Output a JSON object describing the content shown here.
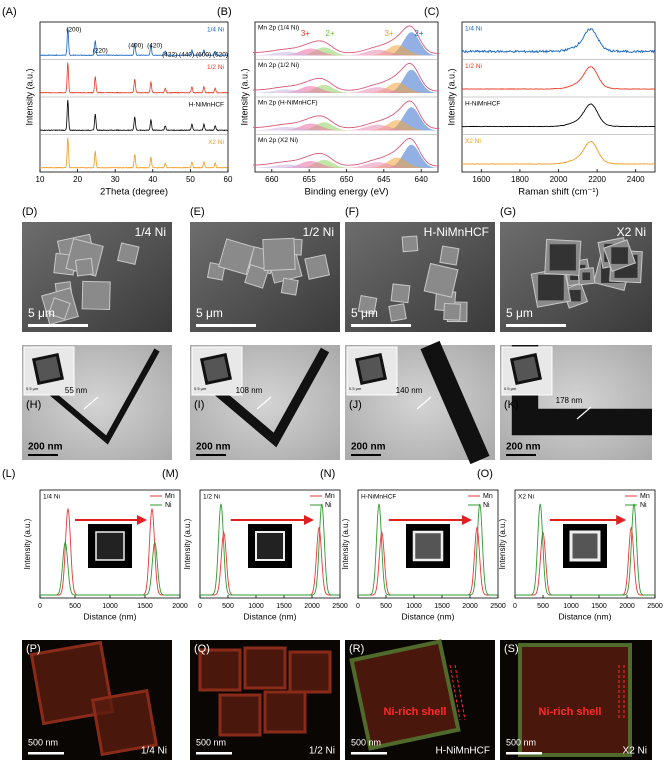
{
  "panelA": {
    "label": "(A)",
    "ylabel": "Intensity (a.u.)",
    "xlabel": "2Theta (degree)",
    "xticks": [
      10,
      20,
      30,
      40,
      50,
      60
    ],
    "traces": [
      "1/4 Ni",
      "1/2 Ni",
      "H-NiMnHCF",
      "X2 Ni"
    ],
    "peaks": [
      "(200)",
      "(220)",
      "(400)",
      "(420)",
      "(422)",
      "(440)",
      "(600)",
      "(620)"
    ]
  },
  "panelB": {
    "label": "(B)",
    "ylabel": "Intensity (a.u.)",
    "xlabel": "Binding energy (eV)",
    "xticks": [
      660,
      655,
      650,
      645,
      640
    ],
    "traces": [
      "Mn 2p (1/4 Ni)",
      "Mn 2p (1/2 Ni)",
      "Mn 2p (H-NiMnHCF)",
      "Mn 2p (X2 Ni)"
    ],
    "states": [
      "3+",
      "2+",
      "3+",
      "2+"
    ]
  },
  "panelC": {
    "label": "(C)",
    "ylabel": "Intensity (a.u.)",
    "xlabel": "Raman shift (cm⁻¹)",
    "xticks": [
      1600,
      1800,
      2000,
      2200,
      2400
    ],
    "traces": [
      "1/4 Ni",
      "1/2 Ni",
      "H-NiMnHCF",
      "X2 Ni"
    ]
  },
  "sem": [
    {
      "label": "(D)",
      "name": "1/4 Ni",
      "scale": "5 μm"
    },
    {
      "label": "(E)",
      "name": "1/2 Ni",
      "scale": "5 μm"
    },
    {
      "label": "(F)",
      "name": "H-NiMnHCF",
      "scale": "5 μm"
    },
    {
      "label": "(G)",
      "name": "X2 Ni",
      "scale": "5 μm"
    }
  ],
  "tem": [
    {
      "label": "(H)",
      "thickness": "55 nm",
      "scale": "200 nm",
      "inset_scale": "0.5 μm"
    },
    {
      "label": "(I)",
      "thickness": "108 nm",
      "scale": "200 nm",
      "inset_scale": "0.5 μm"
    },
    {
      "label": "(J)",
      "thickness": "140 nm",
      "scale": "200 nm",
      "inset_scale": "0.5 μm"
    },
    {
      "label": "(K)",
      "thickness": "178 nm",
      "scale": "200 nm",
      "inset_scale": "0.5 μm"
    }
  ],
  "profiles": [
    {
      "label": "(L)",
      "name": "1/4 Ni",
      "legend": [
        "Mn",
        "Ni"
      ],
      "ylabel": "Intensity (a.u.)",
      "xlabel": "Distance (nm)",
      "xticks": [
        0,
        500,
        1000,
        1500,
        2000
      ]
    },
    {
      "label": "(M)",
      "name": "1/2 Ni",
      "legend": [
        "Mn",
        "Ni"
      ],
      "ylabel": "Intensity (a.u.)",
      "xlabel": "Distance (nm)",
      "xticks": [
        0,
        500,
        1000,
        1500,
        2000,
        2500
      ]
    },
    {
      "label": "(N)",
      "name": "H-NiMnHCF",
      "legend": [
        "Mn",
        "Ni"
      ],
      "ylabel": "Intensity (a.u.)",
      "xlabel": "Distance (nm)",
      "xticks": [
        0,
        500,
        1000,
        1500,
        2000,
        2500
      ]
    },
    {
      "label": "(O)",
      "name": "X2 Ni",
      "legend": [
        "Mn",
        "Ni"
      ],
      "ylabel": "Intensity (a.u.)",
      "xlabel": "Distance (nm)",
      "xticks": [
        0,
        500,
        1000,
        1500,
        2000,
        2500
      ]
    }
  ],
  "maps": [
    {
      "label": "(P)",
      "name": "1/4 Ni",
      "scale": "500 nm"
    },
    {
      "label": "(Q)",
      "name": "1/2 Ni",
      "scale": "500 nm"
    },
    {
      "label": "(R)",
      "name": "H-NiMnHCF",
      "scale": "500 nm",
      "note": "Ni-rich shell"
    },
    {
      "label": "(S)",
      "name": "X2 Ni",
      "scale": "500 nm",
      "note": "Ni-rich shell"
    }
  ]
}
